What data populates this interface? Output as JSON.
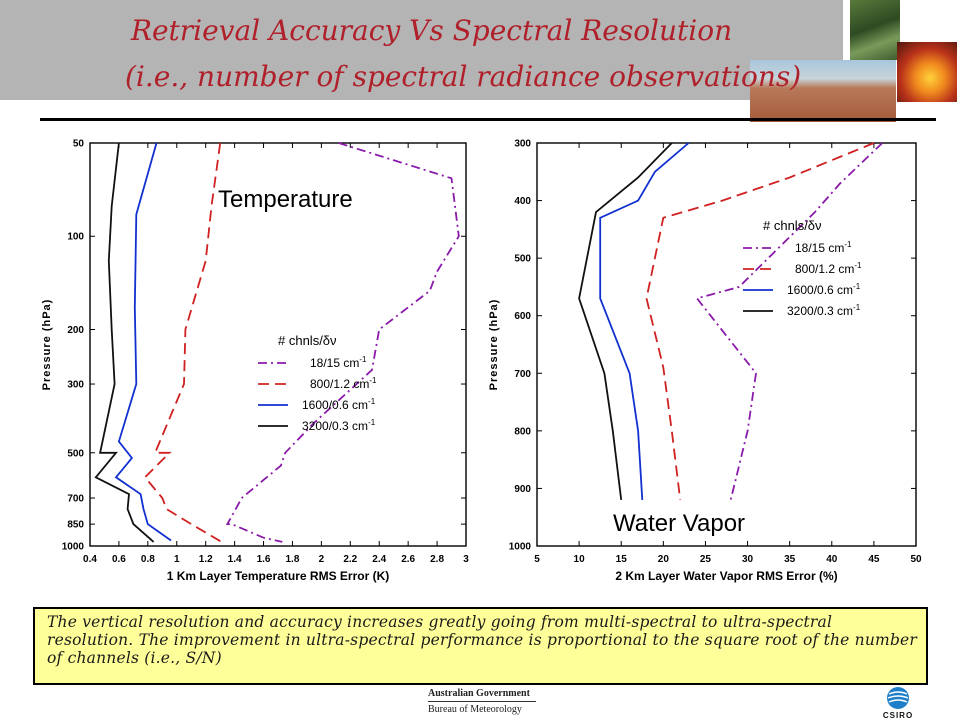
{
  "title": {
    "line1": "Retrieval Accuracy Vs Spectral Resolution",
    "line2": "(i.e., number of spectral radiance observations)"
  },
  "caption": "The vertical resolution and accuracy increases greatly going from multi-spectral to ultra-spectral resolution.  The improvement in ultra-spectral performance is proportional to the square root of the number of channels (i.e., S/N)",
  "footer": {
    "agency_line1": "Australian Government",
    "agency_line2": "Bureau of Meteorology",
    "csiro_text": "CSIRO"
  },
  "colors": {
    "title": "#b0202a",
    "caption_bg": "#ffff99",
    "header_band": "#b4b4b4"
  },
  "chart_data": [
    {
      "type": "line",
      "label": "Temperature",
      "xlabel": "1 Km Layer Temperature RMS Error (K)",
      "ylabel": "Pressure (hPa)",
      "xlim": [
        0.4,
        3
      ],
      "xticks": [
        "0.4",
        "0.6",
        "0.8",
        "1",
        "1.2",
        "1.4",
        "1.6",
        "1.8",
        "2",
        "2.2",
        "2.4",
        "2.6",
        "2.8",
        "3"
      ],
      "ylim": [
        50,
        1000
      ],
      "y_scale": "log",
      "yticks": [
        "50",
        "100",
        "200",
        "300",
        "500",
        "700",
        "850",
        "1000"
      ],
      "legend_title": "# chnls/δν",
      "legend_position": "lower-middle",
      "series": [
        {
          "name": "18/15 cm",
          "sup": "-1",
          "color": "#8a1aaa",
          "dash": "dashdot",
          "points": [
            [
              2.12,
              50
            ],
            [
              2.9,
              65
            ],
            [
              2.95,
              100
            ],
            [
              2.8,
              130
            ],
            [
              2.75,
              150
            ],
            [
              2.4,
              200
            ],
            [
              2.35,
              270
            ],
            [
              1.95,
              400
            ],
            [
              1.75,
              500
            ],
            [
              1.72,
              550
            ],
            [
              1.45,
              700
            ],
            [
              1.35,
              850
            ],
            [
              1.38,
              850
            ],
            [
              1.6,
              940
            ],
            [
              1.73,
              970
            ]
          ]
        },
        {
          "name": "800/1.2 cm",
          "sup": "-1",
          "color": "#d02020",
          "dash": "dashed",
          "points": [
            [
              1.3,
              50
            ],
            [
              1.24,
              80
            ],
            [
              1.2,
              120
            ],
            [
              1.06,
              200
            ],
            [
              1.05,
              300
            ],
            [
              0.85,
              500
            ],
            [
              0.95,
              500
            ],
            [
              0.78,
              600
            ],
            [
              0.9,
              700
            ],
            [
              0.93,
              760
            ],
            [
              1.1,
              850
            ],
            [
              1.31,
              970
            ]
          ]
        },
        {
          "name": "1600/0.6 cm",
          "sup": "-1",
          "color": "#1030d0",
          "dash": "solid",
          "points": [
            [
              0.86,
              50
            ],
            [
              0.72,
              85
            ],
            [
              0.71,
              170
            ],
            [
              0.72,
              300
            ],
            [
              0.6,
              460
            ],
            [
              0.69,
              520
            ],
            [
              0.58,
              600
            ],
            [
              0.75,
              680
            ],
            [
              0.77,
              760
            ],
            [
              0.8,
              850
            ],
            [
              0.96,
              960
            ]
          ]
        },
        {
          "name": "3200/0.3 cm",
          "sup": "-1",
          "color": "#111111",
          "dash": "solid",
          "points": [
            [
              0.6,
              50
            ],
            [
              0.55,
              80
            ],
            [
              0.53,
              120
            ],
            [
              0.55,
              200
            ],
            [
              0.57,
              300
            ],
            [
              0.47,
              500
            ],
            [
              0.58,
              500
            ],
            [
              0.44,
              600
            ],
            [
              0.67,
              680
            ],
            [
              0.66,
              760
            ],
            [
              0.7,
              850
            ],
            [
              0.84,
              970
            ]
          ]
        }
      ]
    },
    {
      "type": "line",
      "label": "Water Vapor",
      "xlabel": "2 Km Layer Water Vapor RMS Error (%)",
      "ylabel": "Pressure (hPa)",
      "xlim": [
        5,
        50
      ],
      "xticks": [
        "5",
        "10",
        "15",
        "20",
        "25",
        "30",
        "35",
        "40",
        "45",
        "50"
      ],
      "ylim": [
        300,
        1000
      ],
      "y_scale": "linear",
      "yticks": [
        "300",
        "400",
        "500",
        "600",
        "700",
        "800",
        "900",
        "1000"
      ],
      "legend_title": "# chnls/δν",
      "legend_position": "upper-right",
      "series": [
        {
          "name": "18/15 cm",
          "sup": "-1",
          "color": "#8a1aaa",
          "dash": "dashdot",
          "points": [
            [
              46,
              300
            ],
            [
              41,
              370
            ],
            [
              38,
              420
            ],
            [
              29,
              550
            ],
            [
              24,
              570
            ],
            [
              31,
              700
            ],
            [
              30,
              800
            ],
            [
              28,
              920
            ]
          ]
        },
        {
          "name": "800/1.2 cm",
          "sup": "-1",
          "color": "#d02020",
          "dash": "dashed",
          "points": [
            [
              45,
              300
            ],
            [
              35,
              360
            ],
            [
              27,
              400
            ],
            [
              20,
              430
            ],
            [
              18,
              570
            ],
            [
              20,
              690
            ],
            [
              21,
              800
            ],
            [
              22,
              920
            ]
          ]
        },
        {
          "name": "1600/0.6 cm",
          "sup": "-1",
          "color": "#1030d0",
          "dash": "solid",
          "points": [
            [
              23,
              300
            ],
            [
              19,
              350
            ],
            [
              17,
              400
            ],
            [
              12.5,
              430
            ],
            [
              12.5,
              570
            ],
            [
              16,
              700
            ],
            [
              17,
              800
            ],
            [
              17.5,
              920
            ]
          ]
        },
        {
          "name": "3200/0.3 cm",
          "sup": "-1",
          "color": "#111111",
          "dash": "solid",
          "points": [
            [
              21,
              300
            ],
            [
              17,
              360
            ],
            [
              12,
              420
            ],
            [
              10,
              570
            ],
            [
              13,
              700
            ],
            [
              14,
              800
            ],
            [
              15,
              920
            ]
          ]
        }
      ]
    }
  ]
}
